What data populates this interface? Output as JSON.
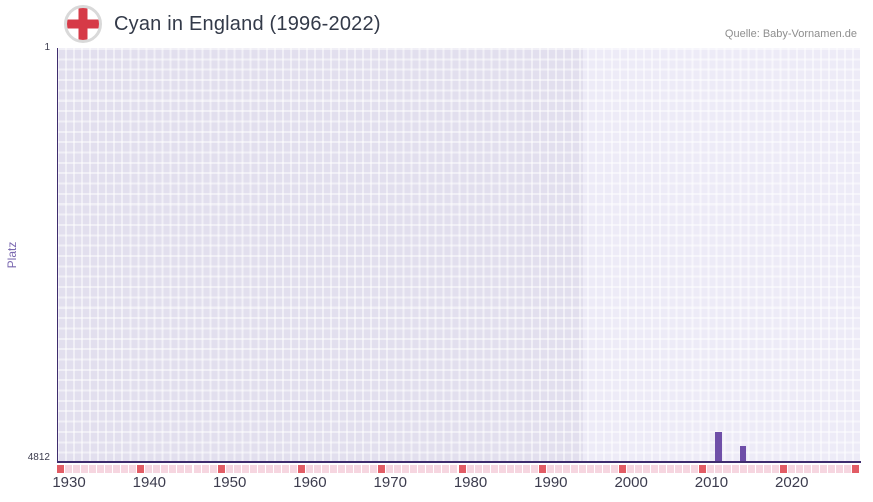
{
  "header": {
    "title": "Cyan in England (1996-2022)",
    "source": "Quelle: Baby-Vornamen.de"
  },
  "chart_data": {
    "type": "bar",
    "title": "Cyan in England (1996-2022)",
    "xlabel": "",
    "ylabel": "Platz",
    "x_range": [
      1929,
      2029
    ],
    "x_ticks": [
      1930,
      1940,
      1950,
      1960,
      1970,
      1980,
      1990,
      2000,
      2010,
      2020
    ],
    "y_axis": {
      "top_label": "1",
      "bottom_label": "4812",
      "min": 1,
      "max": 4812,
      "inverted": true
    },
    "bars": [
      {
        "year": 2011,
        "rank": 4460
      },
      {
        "year": 2014,
        "rank": 4630
      }
    ],
    "highlight_band": {
      "start": 1994.5,
      "end": 2029
    },
    "grid": true,
    "legend": false,
    "colors": {
      "bar": "#6f4fa8",
      "plot_bg": "#e2dfee",
      "band_bg": "#edebf7",
      "axis": "#3f2d6e",
      "tick_red": "#e25c65",
      "tick_pink": "#f6d6e0"
    }
  }
}
